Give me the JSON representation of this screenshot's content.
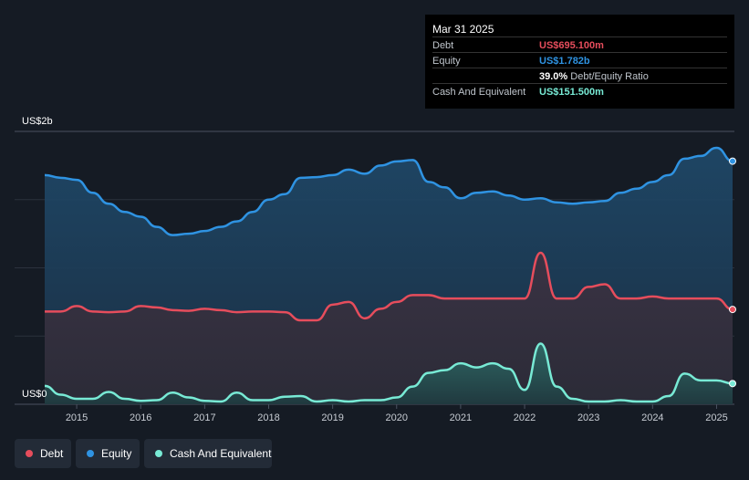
{
  "chart_data": {
    "type": "area",
    "y_axis_labels": [
      "US$2b",
      "US$0"
    ],
    "ylim": [
      0,
      2000
    ],
    "x_ticks": [
      "2015",
      "2016",
      "2017",
      "2018",
      "2019",
      "2020",
      "2021",
      "2022",
      "2023",
      "2024",
      "2025"
    ],
    "x_tick_values": [
      2015,
      2016,
      2017,
      2018,
      2019,
      2020,
      2021,
      2022,
      2023,
      2024,
      2025
    ],
    "xlim": [
      2014.5,
      2025.25
    ],
    "series": [
      {
        "name": "Equity",
        "color": "#2f93e2",
        "x": [
          2014.5,
          2014.75,
          2015.0,
          2015.25,
          2015.5,
          2015.75,
          2016.0,
          2016.25,
          2016.5,
          2016.75,
          2017.0,
          2017.25,
          2017.5,
          2017.75,
          2018.0,
          2018.25,
          2018.5,
          2018.75,
          2019.0,
          2019.25,
          2019.5,
          2019.75,
          2020.0,
          2020.25,
          2020.5,
          2020.75,
          2021.0,
          2021.25,
          2021.5,
          2021.75,
          2022.0,
          2022.25,
          2022.5,
          2022.75,
          2023.0,
          2023.25,
          2023.5,
          2023.75,
          2024.0,
          2024.25,
          2024.5,
          2024.75,
          2025.0,
          2025.25
        ],
        "values": [
          1680,
          1660,
          1645,
          1550,
          1470,
          1410,
          1375,
          1300,
          1240,
          1250,
          1270,
          1300,
          1340,
          1410,
          1500,
          1540,
          1660,
          1665,
          1680,
          1720,
          1690,
          1750,
          1780,
          1790,
          1630,
          1590,
          1510,
          1550,
          1560,
          1530,
          1500,
          1510,
          1480,
          1470,
          1480,
          1490,
          1550,
          1580,
          1630,
          1680,
          1800,
          1820,
          1880,
          1782
        ]
      },
      {
        "name": "Debt",
        "color": "#e64d5c",
        "x": [
          2014.5,
          2014.75,
          2015.0,
          2015.25,
          2015.5,
          2015.75,
          2016.0,
          2016.25,
          2016.5,
          2016.75,
          2017.0,
          2017.25,
          2017.5,
          2017.75,
          2018.0,
          2018.25,
          2018.5,
          2018.75,
          2019.0,
          2019.25,
          2019.5,
          2019.75,
          2020.0,
          2020.25,
          2020.5,
          2020.75,
          2021.0,
          2021.25,
          2021.5,
          2021.75,
          2022.0,
          2022.25,
          2022.5,
          2022.75,
          2023.0,
          2023.25,
          2023.5,
          2023.75,
          2024.0,
          2024.25,
          2024.5,
          2024.75,
          2025.0,
          2025.25
        ],
        "values": [
          680,
          680,
          720,
          680,
          675,
          680,
          720,
          710,
          690,
          685,
          700,
          690,
          675,
          680,
          680,
          675,
          615,
          615,
          730,
          750,
          630,
          700,
          750,
          800,
          800,
          775,
          775,
          775,
          775,
          775,
          775,
          1110,
          775,
          775,
          860,
          880,
          775,
          775,
          790,
          775,
          775,
          775,
          775,
          695.1
        ]
      },
      {
        "name": "Cash And Equivalent",
        "color": "#78ead5",
        "x": [
          2014.5,
          2014.75,
          2015.0,
          2015.25,
          2015.5,
          2015.75,
          2016.0,
          2016.25,
          2016.5,
          2016.75,
          2017.0,
          2017.25,
          2017.5,
          2017.75,
          2018.0,
          2018.25,
          2018.5,
          2018.75,
          2019.0,
          2019.25,
          2019.5,
          2019.75,
          2020.0,
          2020.25,
          2020.5,
          2020.75,
          2021.0,
          2021.25,
          2021.5,
          2021.75,
          2022.0,
          2022.25,
          2022.5,
          2022.75,
          2023.0,
          2023.25,
          2023.5,
          2023.75,
          2024.0,
          2024.25,
          2024.5,
          2024.75,
          2025.0,
          2025.25
        ],
        "values": [
          135,
          70,
          40,
          40,
          90,
          40,
          25,
          30,
          85,
          50,
          25,
          20,
          85,
          30,
          30,
          55,
          60,
          20,
          30,
          20,
          30,
          30,
          50,
          130,
          230,
          250,
          300,
          270,
          300,
          260,
          105,
          445,
          130,
          40,
          20,
          20,
          30,
          20,
          20,
          60,
          225,
          175,
          175,
          151.5
        ]
      }
    ],
    "tooltip": {
      "date": "Mar 31 2025",
      "rows": [
        {
          "label": "Debt",
          "value": "US$695.100m",
          "color": "#e64d5c"
        },
        {
          "label": "Equity",
          "value": "US$1.782b",
          "color": "#2f93e2"
        },
        {
          "label": "",
          "value": "39.0%",
          "suffix": "Debt/Equity Ratio",
          "color": "#ffffff"
        },
        {
          "label": "Cash And Equivalent",
          "value": "US$151.500m",
          "color": "#78ead5"
        }
      ]
    },
    "legend": [
      {
        "label": "Debt",
        "color": "#e64d5c"
      },
      {
        "label": "Equity",
        "color": "#2f93e2"
      },
      {
        "label": "Cash And Equivalent",
        "color": "#78ead5"
      }
    ]
  }
}
